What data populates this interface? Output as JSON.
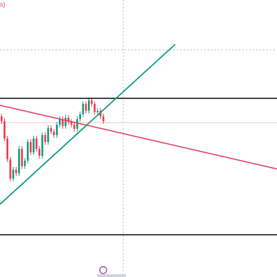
{
  "header": {
    "fragment": "s)"
  }
}
